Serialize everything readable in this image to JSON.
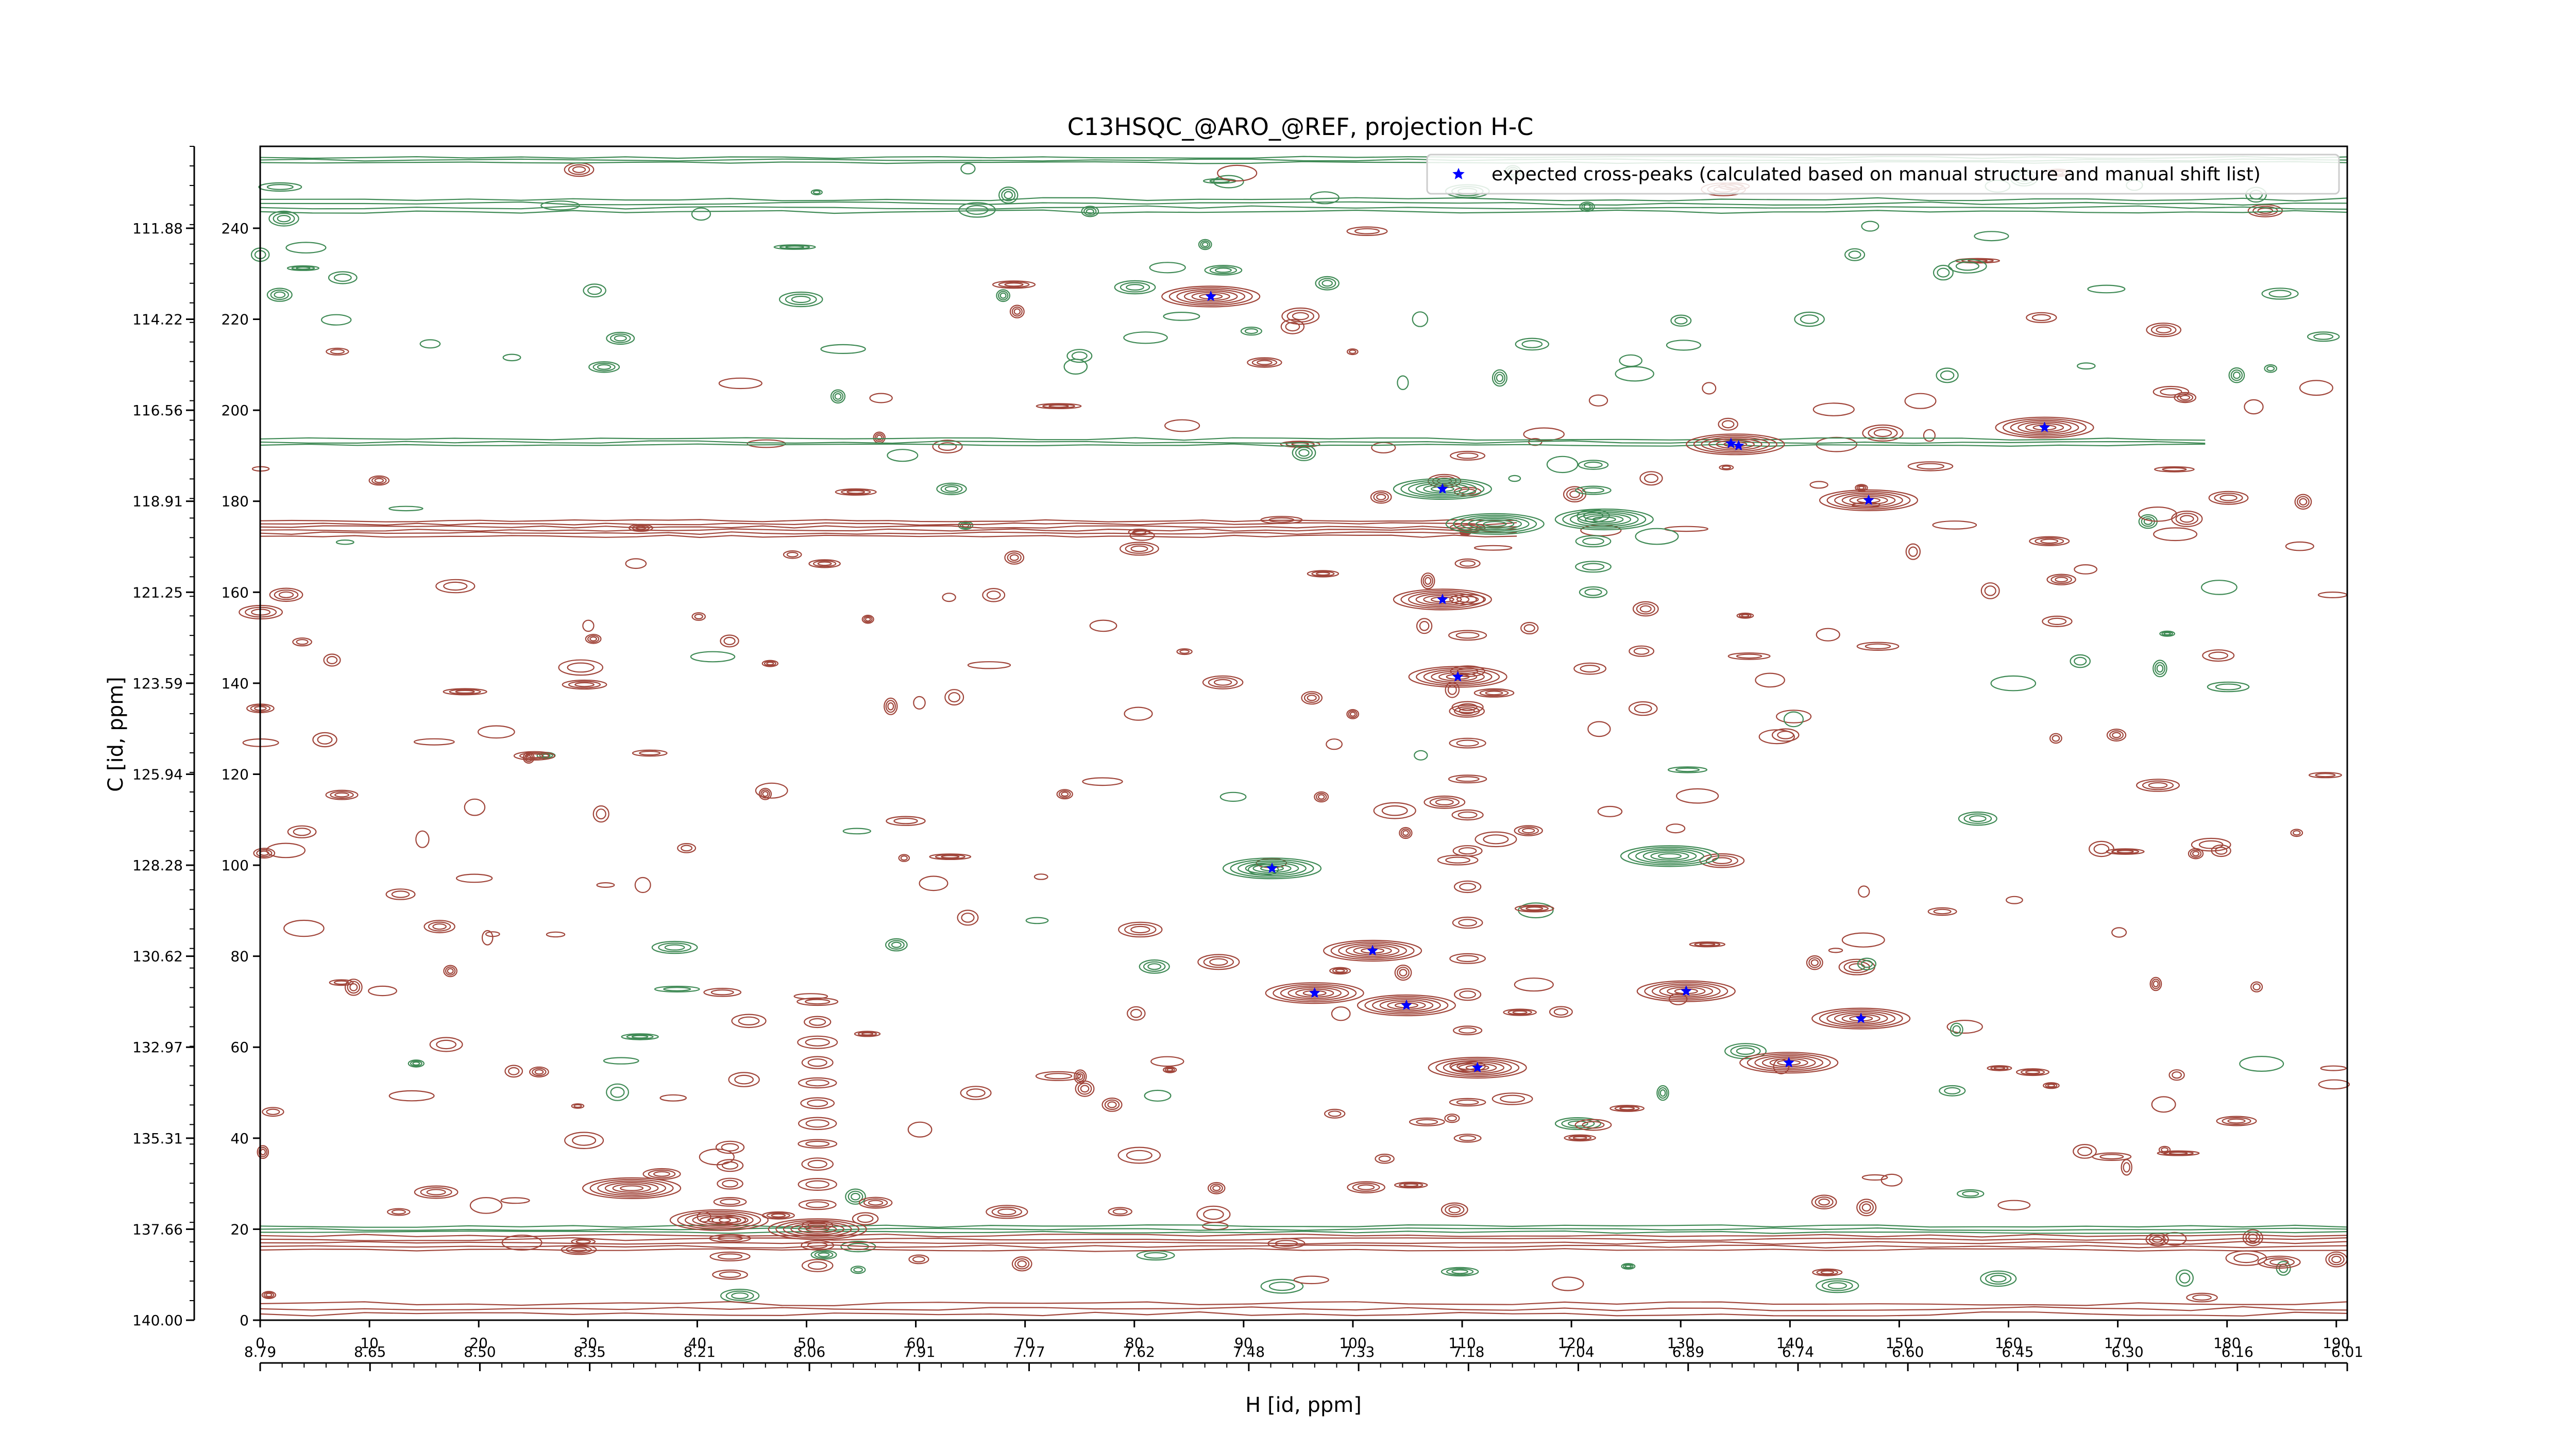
{
  "chart_data": {
    "type": "scatter",
    "title": "C13HSQC_@ARO_@REF, projection H-C",
    "xlabel": "H [id, ppm]",
    "ylabel": "C [id, ppm]",
    "x_index_range": [
      0,
      191
    ],
    "y_index_range": [
      0,
      258
    ],
    "x_index_ticks": [
      0,
      10,
      20,
      30,
      40,
      50,
      60,
      70,
      80,
      90,
      100,
      110,
      120,
      130,
      140,
      150,
      160,
      170,
      180,
      190
    ],
    "y_index_ticks": [
      0,
      20,
      40,
      60,
      80,
      100,
      120,
      140,
      160,
      180,
      200,
      220,
      240
    ],
    "x_ppm_ticks": [
      "8.79",
      "8.65",
      "8.50",
      "8.35",
      "8.21",
      "8.06",
      "7.91",
      "7.77",
      "7.62",
      "7.48",
      "7.33",
      "7.18",
      "7.04",
      "6.89",
      "6.74",
      "6.60",
      "6.45",
      "6.30",
      "6.16",
      "6.01"
    ],
    "y_ppm_ticks": [
      "140.00",
      "137.66",
      "135.31",
      "132.97",
      "130.62",
      "128.28",
      "125.94",
      "123.59",
      "121.25",
      "118.91",
      "116.56",
      "114.22",
      "111.88"
    ],
    "legend": {
      "position": "top-right",
      "entries": [
        {
          "label": "expected cross-peaks (calculated based on manual structure and manual shift list)",
          "color": "#0000ff",
          "marker": "star"
        }
      ]
    },
    "series": [
      {
        "name": "expected cross-peaks (calculated based on manual structure and manual shift list)",
        "color": "#0000ff",
        "points": [
          {
            "x": 87,
            "y": 225
          },
          {
            "x": 134.6,
            "y": 192.7
          },
          {
            "x": 135.3,
            "y": 192.2
          },
          {
            "x": 163.3,
            "y": 196.2
          },
          {
            "x": 108.2,
            "y": 182.7
          },
          {
            "x": 147.2,
            "y": 180.2
          },
          {
            "x": 108.2,
            "y": 158.4
          },
          {
            "x": 109.6,
            "y": 141.4
          },
          {
            "x": 92.6,
            "y": 99.3
          },
          {
            "x": 101.8,
            "y": 81.2
          },
          {
            "x": 96.5,
            "y": 71.9
          },
          {
            "x": 104.9,
            "y": 69.2
          },
          {
            "x": 111.4,
            "y": 55.5
          },
          {
            "x": 130.5,
            "y": 72.3
          },
          {
            "x": 139.9,
            "y": 56.6
          },
          {
            "x": 146.5,
            "y": 66.3
          }
        ]
      }
    ],
    "contours": {
      "positive_color": "#a0453a",
      "negative_color": "#3f8a55"
    }
  }
}
